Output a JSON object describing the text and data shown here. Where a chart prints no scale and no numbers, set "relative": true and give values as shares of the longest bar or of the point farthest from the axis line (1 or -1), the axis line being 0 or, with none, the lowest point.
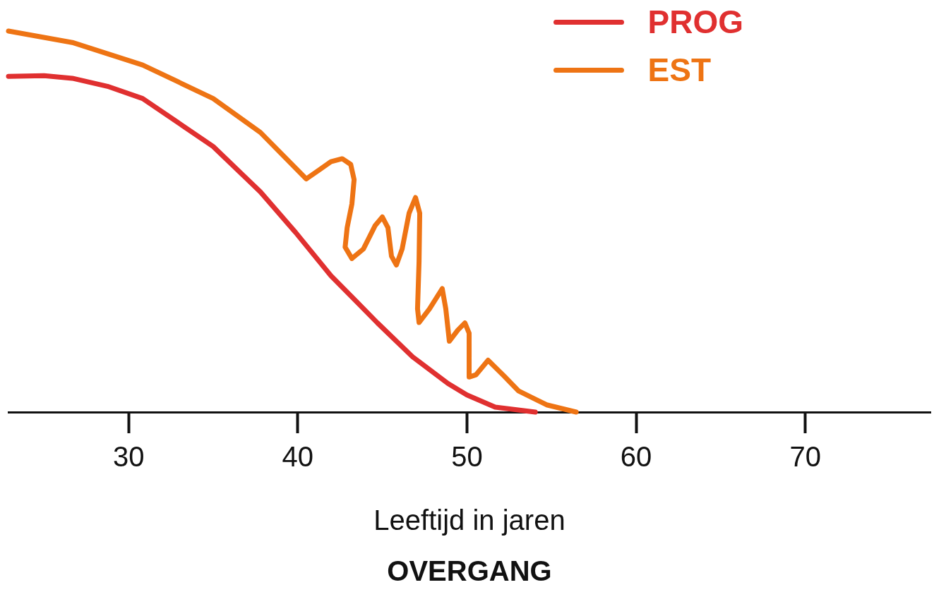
{
  "chart_data": {
    "type": "line",
    "title": "OVERGANG",
    "xlabel": "Leeftijd in jaren",
    "relative": true,
    "xlim": [
      22.9,
      77.4
    ],
    "xticks": [
      30,
      40,
      50,
      60,
      70
    ],
    "legend": "top right",
    "grid": false,
    "marker": "none",
    "line_style": "solid",
    "series": [
      {
        "name": "PROG",
        "color": "#e03030",
        "x": [
          22.9,
          25.0,
          26.67,
          28.75,
          30.83,
          35,
          37.79,
          39.88,
          41.96,
          44.71,
          46.79,
          48.88,
          50,
          51.67,
          54.04
        ],
        "values": [
          0.881,
          0.883,
          0.876,
          0.855,
          0.823,
          0.697,
          0.578,
          0.471,
          0.358,
          0.234,
          0.145,
          0.075,
          0.045,
          0.013,
          0
        ]
      },
      {
        "name": "EST",
        "color": "#ee7414",
        "x": [
          22.9,
          26.67,
          30.83,
          35,
          37.79,
          40.5,
          41.25,
          41.96,
          42.63,
          43.13,
          43.33,
          43.2,
          42.92,
          42.8,
          43.2,
          43.88,
          44.58,
          45.0,
          45.33,
          45.54,
          45.83,
          46.17,
          46.58,
          46.96,
          47.21,
          47.17,
          47.08,
          47.17,
          47.79,
          48.54,
          48.75,
          48.96,
          49.46,
          49.88,
          50.13,
          50.13,
          50.54,
          51.25,
          52.21,
          53.04,
          54.71,
          56.46
        ],
        "values": [
          1.0,
          0.97,
          0.911,
          0.823,
          0.734,
          0.612,
          0.635,
          0.657,
          0.665,
          0.65,
          0.61,
          0.546,
          0.484,
          0.433,
          0.403,
          0.428,
          0.49,
          0.512,
          0.484,
          0.409,
          0.386,
          0.428,
          0.522,
          0.563,
          0.522,
          0.395,
          0.271,
          0.235,
          0.271,
          0.324,
          0.271,
          0.186,
          0.215,
          0.234,
          0.207,
          0.092,
          0.098,
          0.136,
          0.094,
          0.056,
          0.019,
          0
        ]
      }
    ]
  }
}
